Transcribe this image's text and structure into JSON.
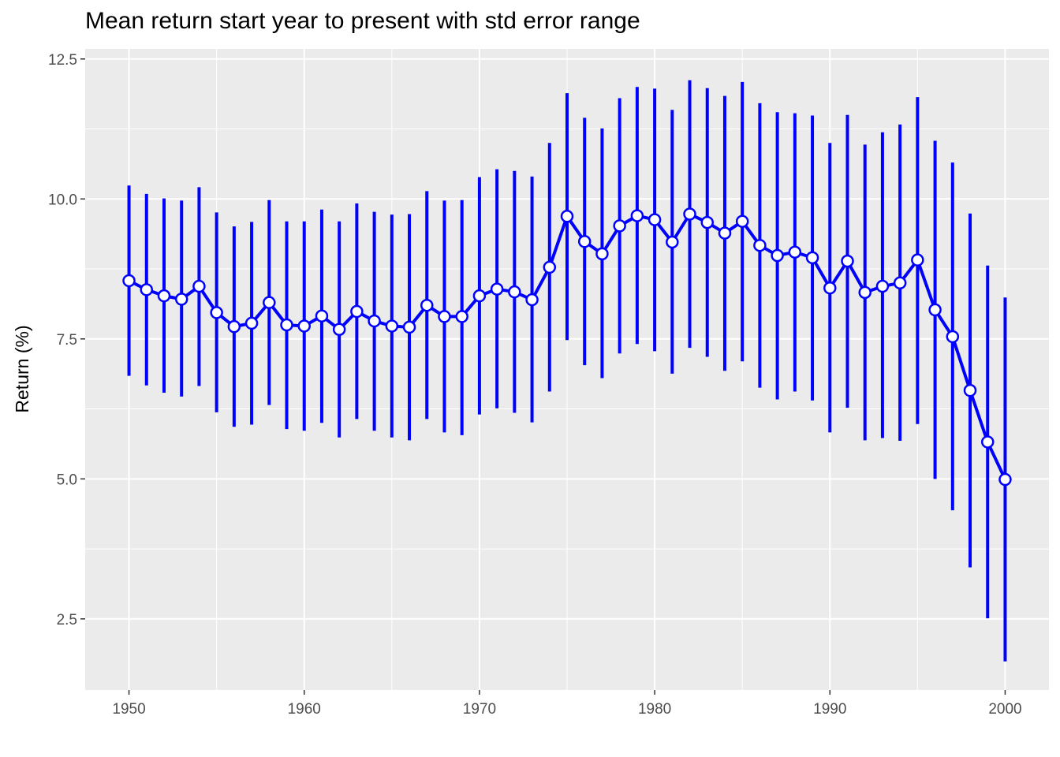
{
  "chart_data": {
    "type": "line",
    "title": "Mean return start year to present with std error range",
    "xlabel": "",
    "ylabel": "Return (%)",
    "xlim": [
      1947.5,
      2002.5
    ],
    "ylim": [
      1.23,
      12.68
    ],
    "x_ticks": [
      1950,
      1960,
      1970,
      1980,
      1990,
      2000
    ],
    "x_tick_labels": [
      "1950",
      "1960",
      "1970",
      "1980",
      "1990",
      "2000"
    ],
    "y_ticks": [
      2.5,
      5.0,
      7.5,
      10.0,
      12.5
    ],
    "y_tick_labels": [
      "2.5",
      "5.0",
      "7.5",
      "10.0",
      "12.5"
    ],
    "grid": true,
    "legend": "none",
    "colors": {
      "series": "#0000ff",
      "marker_fill": "#ffffff",
      "panel": "#ebebeb",
      "grid": "#ffffff"
    },
    "series": [
      {
        "x": [
          1950,
          1951,
          1952,
          1953,
          1954,
          1955,
          1956,
          1957,
          1958,
          1959,
          1960,
          1961,
          1962,
          1963,
          1964,
          1965,
          1966,
          1967,
          1968,
          1969,
          1970,
          1971,
          1972,
          1973,
          1974,
          1975,
          1976,
          1977,
          1978,
          1979,
          1980,
          1981,
          1982,
          1983,
          1984,
          1985,
          1986,
          1987,
          1988,
          1989,
          1990,
          1991,
          1992,
          1993,
          1994,
          1995,
          1996,
          1997,
          1998,
          1999,
          2000
        ],
        "y": [
          8.54,
          8.38,
          8.27,
          8.21,
          8.44,
          7.97,
          7.72,
          7.78,
          8.15,
          7.75,
          7.73,
          7.91,
          7.67,
          7.99,
          7.82,
          7.73,
          7.71,
          8.1,
          7.9,
          7.9,
          8.27,
          8.39,
          8.34,
          8.2,
          8.78,
          9.69,
          9.24,
          9.02,
          9.52,
          9.7,
          9.63,
          9.23,
          9.73,
          9.58,
          9.39,
          9.6,
          9.17,
          8.99,
          9.05,
          8.95,
          8.41,
          8.89,
          8.33,
          8.44,
          8.5,
          8.91,
          8.02,
          7.54,
          6.58,
          5.66,
          4.99
        ],
        "ymin": [
          6.84,
          6.67,
          6.54,
          6.47,
          6.66,
          6.19,
          5.93,
          5.97,
          6.32,
          5.89,
          5.86,
          6.0,
          5.74,
          6.07,
          5.86,
          5.74,
          5.69,
          6.07,
          5.83,
          5.78,
          6.15,
          6.26,
          6.18,
          6.01,
          6.56,
          7.48,
          7.03,
          6.8,
          7.24,
          7.41,
          7.28,
          6.88,
          7.34,
          7.18,
          6.93,
          7.1,
          6.63,
          6.42,
          6.56,
          6.4,
          5.83,
          6.27,
          5.69,
          5.73,
          5.68,
          5.98,
          5.0,
          4.44,
          3.42,
          2.51,
          1.74
        ],
        "ymax": [
          10.24,
          10.09,
          10.01,
          9.97,
          10.21,
          9.76,
          9.51,
          9.59,
          9.98,
          9.6,
          9.6,
          9.81,
          9.6,
          9.92,
          9.77,
          9.72,
          9.73,
          10.14,
          9.97,
          9.98,
          10.39,
          10.53,
          10.5,
          10.4,
          11.0,
          11.89,
          11.45,
          11.26,
          11.8,
          12.0,
          11.97,
          11.59,
          12.12,
          11.98,
          11.84,
          12.09,
          11.71,
          11.55,
          11.53,
          11.49,
          11.0,
          11.5,
          10.97,
          11.19,
          11.33,
          11.82,
          11.04,
          10.65,
          9.74,
          8.81,
          8.24
        ]
      }
    ]
  }
}
